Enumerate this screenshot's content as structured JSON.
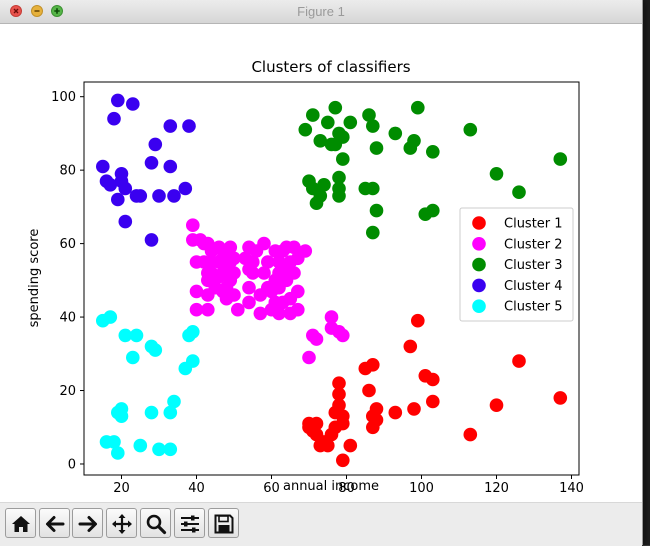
{
  "window": {
    "title": "Figure 1",
    "controls": [
      "close-icon",
      "minimize-icon",
      "zoom-icon"
    ]
  },
  "toolbar": {
    "buttons": [
      "home-icon",
      "back-arrow-icon",
      "forward-arrow-icon",
      "pan-move-icon",
      "zoom-magnifier-icon",
      "subplot-config-icon",
      "save-disk-icon"
    ]
  },
  "chart_data": {
    "type": "scatter",
    "title": "Clusters of classifiers",
    "xlabel": "annual income",
    "ylabel": "spending score",
    "xlim": [
      10,
      142
    ],
    "ylim": [
      -3,
      104
    ],
    "xticks": [
      20,
      40,
      60,
      80,
      100,
      120,
      140
    ],
    "yticks": [
      0,
      20,
      40,
      60,
      80,
      100
    ],
    "grid": false,
    "legend_position": "center-right",
    "series": [
      {
        "name": "Cluster 1",
        "color": "#ff0000",
        "points": [
          [
            70,
            10
          ],
          [
            70,
            11
          ],
          [
            71,
            9
          ],
          [
            72,
            8
          ],
          [
            72,
            11
          ],
          [
            73,
            5
          ],
          [
            74,
            6
          ],
          [
            75,
            5
          ],
          [
            76,
            8
          ],
          [
            77,
            10
          ],
          [
            77,
            14
          ],
          [
            78,
            19
          ],
          [
            78,
            16
          ],
          [
            78,
            22
          ],
          [
            79,
            1
          ],
          [
            79,
            13
          ],
          [
            79,
            11
          ],
          [
            81,
            5
          ],
          [
            85,
            26
          ],
          [
            86,
            20
          ],
          [
            87,
            27
          ],
          [
            87,
            13
          ],
          [
            87,
            10
          ],
          [
            88,
            15
          ],
          [
            88,
            12
          ],
          [
            93,
            14
          ],
          [
            97,
            32
          ],
          [
            98,
            15
          ],
          [
            99,
            39
          ],
          [
            101,
            24
          ],
          [
            103,
            17
          ],
          [
            103,
            23
          ],
          [
            113,
            8
          ],
          [
            120,
            16
          ],
          [
            126,
            28
          ],
          [
            137,
            18
          ]
        ]
      },
      {
        "name": "Cluster 2",
        "color": "#ff00ff",
        "points": [
          [
            39,
            65
          ],
          [
            39,
            61
          ],
          [
            40,
            55
          ],
          [
            40,
            47
          ],
          [
            40,
            42
          ],
          [
            41,
            61
          ],
          [
            42,
            60
          ],
          [
            42,
            55
          ],
          [
            43,
            60
          ],
          [
            43,
            52
          ],
          [
            43,
            50
          ],
          [
            43,
            46
          ],
          [
            43,
            42
          ],
          [
            44,
            58
          ],
          [
            44,
            55
          ],
          [
            44,
            52
          ],
          [
            45,
            48
          ],
          [
            46,
            59
          ],
          [
            46,
            55
          ],
          [
            46,
            51
          ],
          [
            47,
            56
          ],
          [
            47,
            52
          ],
          [
            47,
            47
          ],
          [
            48,
            57
          ],
          [
            48,
            54
          ],
          [
            48,
            48
          ],
          [
            48,
            45
          ],
          [
            49,
            59
          ],
          [
            49,
            55
          ],
          [
            49,
            50
          ],
          [
            50,
            56
          ],
          [
            50,
            52
          ],
          [
            50,
            46
          ],
          [
            51,
            42
          ],
          [
            53,
            56
          ],
          [
            54,
            59
          ],
          [
            54,
            53
          ],
          [
            54,
            48
          ],
          [
            54,
            44
          ],
          [
            55,
            55
          ],
          [
            55,
            52
          ],
          [
            56,
            58
          ],
          [
            57,
            46
          ],
          [
            57,
            41
          ],
          [
            58,
            60
          ],
          [
            58,
            52
          ],
          [
            59,
            55
          ],
          [
            59,
            48
          ],
          [
            60,
            47
          ],
          [
            60,
            42
          ],
          [
            61,
            58
          ],
          [
            61,
            50
          ],
          [
            61,
            44
          ],
          [
            62,
            55
          ],
          [
            62,
            52
          ],
          [
            62,
            48
          ],
          [
            62,
            41
          ],
          [
            63,
            58
          ],
          [
            63,
            53
          ],
          [
            63,
            44
          ],
          [
            64,
            59
          ],
          [
            64,
            50
          ],
          [
            65,
            55
          ],
          [
            65,
            45
          ],
          [
            65,
            41
          ],
          [
            66,
            59
          ],
          [
            66,
            52
          ],
          [
            67,
            56
          ],
          [
            67,
            47
          ],
          [
            67,
            42
          ],
          [
            69,
            58
          ],
          [
            70,
            29
          ],
          [
            71,
            35
          ],
          [
            72,
            34
          ],
          [
            76,
            40
          ],
          [
            76,
            37
          ],
          [
            78,
            36
          ],
          [
            79,
            35
          ]
        ]
      },
      {
        "name": "Cluster 3",
        "color": "#008c00",
        "points": [
          [
            69,
            91
          ],
          [
            70,
            77
          ],
          [
            71,
            95
          ],
          [
            71,
            75
          ],
          [
            72,
            71
          ],
          [
            73,
            88
          ],
          [
            73,
            73
          ],
          [
            74,
            76
          ],
          [
            75,
            93
          ],
          [
            76,
            87
          ],
          [
            77,
            97
          ],
          [
            77,
            87
          ],
          [
            78,
            90
          ],
          [
            78,
            78
          ],
          [
            78,
            75
          ],
          [
            78,
            73
          ],
          [
            79,
            89
          ],
          [
            79,
            83
          ],
          [
            81,
            93
          ],
          [
            85,
            75
          ],
          [
            86,
            95
          ],
          [
            87,
            92
          ],
          [
            87,
            75
          ],
          [
            87,
            63
          ],
          [
            88,
            69
          ],
          [
            88,
            86
          ],
          [
            93,
            90
          ],
          [
            97,
            86
          ],
          [
            98,
            88
          ],
          [
            99,
            97
          ],
          [
            101,
            68
          ],
          [
            103,
            85
          ],
          [
            103,
            69
          ],
          [
            113,
            91
          ],
          [
            120,
            79
          ],
          [
            126,
            74
          ],
          [
            137,
            83
          ]
        ]
      },
      {
        "name": "Cluster 4",
        "color": "#3a00f0",
        "points": [
          [
            15,
            81
          ],
          [
            16,
            77
          ],
          [
            17,
            76
          ],
          [
            18,
            94
          ],
          [
            19,
            99
          ],
          [
            19,
            72
          ],
          [
            20,
            77
          ],
          [
            20,
            79
          ],
          [
            21,
            66
          ],
          [
            21,
            75
          ],
          [
            23,
            98
          ],
          [
            24,
            73
          ],
          [
            25,
            73
          ],
          [
            28,
            61
          ],
          [
            28,
            82
          ],
          [
            29,
            87
          ],
          [
            30,
            73
          ],
          [
            33,
            81
          ],
          [
            33,
            92
          ],
          [
            34,
            73
          ],
          [
            37,
            75
          ],
          [
            38,
            92
          ]
        ]
      },
      {
        "name": "Cluster 5",
        "color": "#00ffff",
        "points": [
          [
            15,
            39
          ],
          [
            16,
            6
          ],
          [
            17,
            40
          ],
          [
            18,
            6
          ],
          [
            19,
            3
          ],
          [
            19,
            14
          ],
          [
            20,
            15
          ],
          [
            20,
            13
          ],
          [
            21,
            35
          ],
          [
            23,
            29
          ],
          [
            24,
            35
          ],
          [
            25,
            5
          ],
          [
            28,
            14
          ],
          [
            28,
            32
          ],
          [
            29,
            31
          ],
          [
            30,
            4
          ],
          [
            33,
            4
          ],
          [
            33,
            14
          ],
          [
            34,
            17
          ],
          [
            37,
            26
          ],
          [
            38,
            35
          ],
          [
            39,
            28
          ],
          [
            39,
            36
          ]
        ]
      }
    ]
  }
}
